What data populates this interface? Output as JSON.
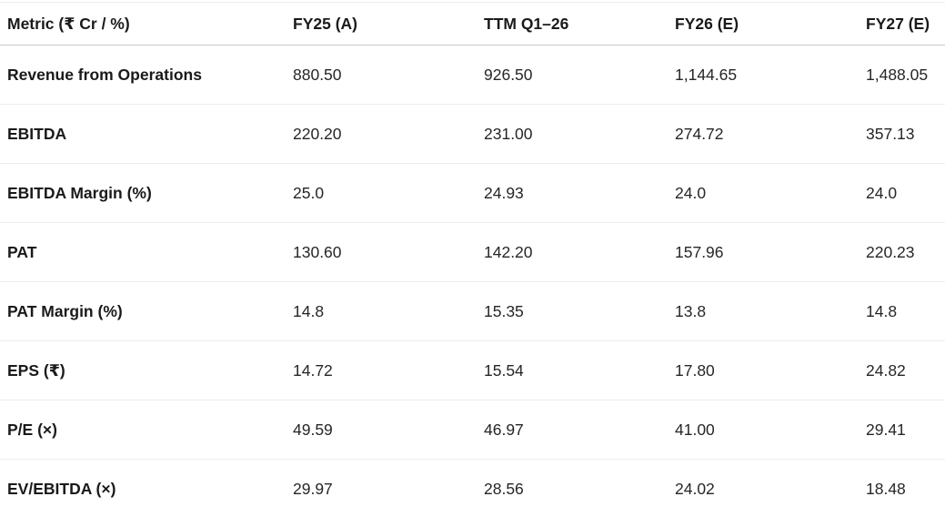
{
  "chart_data": {
    "type": "table",
    "columns": [
      "Metric (₹ Cr / %)",
      "FY25 (A)",
      "TTM Q1–26",
      "FY26 (E)",
      "FY27 (E)"
    ],
    "rows": [
      {
        "metric": "Revenue from Operations",
        "values": [
          "880.50",
          "926.50",
          "1,144.65",
          "1,488.05"
        ]
      },
      {
        "metric": "EBITDA",
        "values": [
          "220.20",
          "231.00",
          "274.72",
          "357.13"
        ]
      },
      {
        "metric": "EBITDA Margin (%)",
        "values": [
          "25.0",
          "24.93",
          "24.0",
          "24.0"
        ]
      },
      {
        "metric": "PAT",
        "values": [
          "130.60",
          "142.20",
          "157.96",
          "220.23"
        ]
      },
      {
        "metric": "PAT Margin (%)",
        "values": [
          "14.8",
          "15.35",
          "13.8",
          "14.8"
        ]
      },
      {
        "metric": "EPS (₹)",
        "values": [
          "14.72",
          "15.54",
          "17.80",
          "24.82"
        ]
      },
      {
        "metric": "P/E (×)",
        "values": [
          "49.59",
          "46.97",
          "41.00",
          "29.41"
        ]
      },
      {
        "metric": "EV/EBITDA (×)",
        "values": [
          "29.97",
          "28.56",
          "24.02",
          "18.48"
        ]
      }
    ],
    "colors": {
      "header_text": "#1a1a1a",
      "cell_text": "#262626",
      "header_divider": "#cccccc",
      "row_divider": "#ededed",
      "background": "#ffffff"
    },
    "layout": {
      "grid": "horizontal-dividers-only",
      "header_position": "top"
    }
  }
}
